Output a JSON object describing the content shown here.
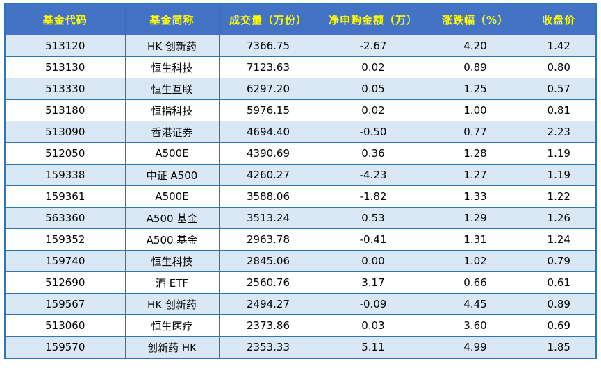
{
  "colors": {
    "header_bg": "#4472c4",
    "header_text": "#ffff00",
    "row_alt_bg": "#dae7f5",
    "row_bg": "#ffffff",
    "border": "#2e75b6"
  },
  "chart_data": {
    "type": "table",
    "title": "",
    "columns": [
      "基金代码",
      "基金简称",
      "成交量（万份）",
      "净申购金额（万）",
      "涨跌幅（%）",
      "收盘价"
    ],
    "column_keys": [
      "fund_code",
      "fund_name",
      "volume",
      "net_subscription",
      "change_pct",
      "close_price"
    ],
    "rows": [
      [
        "513120",
        "HK 创新药",
        "7366.75",
        "-2.67",
        "4.20",
        "1.42"
      ],
      [
        "513130",
        "恒生科技",
        "7123.63",
        "0.02",
        "0.89",
        "0.80"
      ],
      [
        "513330",
        "恒生互联",
        "6297.20",
        "0.05",
        "1.25",
        "0.57"
      ],
      [
        "513180",
        "恒指科技",
        "5976.15",
        "0.02",
        "1.00",
        "0.81"
      ],
      [
        "513090",
        "香港证券",
        "4694.40",
        "-0.50",
        "0.77",
        "2.23"
      ],
      [
        "512050",
        "A500E",
        "4390.69",
        "0.36",
        "1.28",
        "1.19"
      ],
      [
        "159338",
        "中证 A500",
        "4260.27",
        "-4.23",
        "1.27",
        "1.19"
      ],
      [
        "159361",
        "A500E",
        "3588.06",
        "-1.82",
        "1.33",
        "1.22"
      ],
      [
        "563360",
        "A500 基金",
        "3513.24",
        "0.53",
        "1.29",
        "1.26"
      ],
      [
        "159352",
        "A500 基金",
        "2963.78",
        "-0.41",
        "1.31",
        "1.24"
      ],
      [
        "159740",
        "恒生科技",
        "2845.06",
        "0.00",
        "1.02",
        "0.79"
      ],
      [
        "512690",
        "酒 ETF",
        "2560.76",
        "3.17",
        "0.66",
        "0.61"
      ],
      [
        "159567",
        "HK 创新药",
        "2494.27",
        "-0.09",
        "4.45",
        "0.89"
      ],
      [
        "513060",
        "恒生医疗",
        "2373.86",
        "0.03",
        "3.60",
        "0.69"
      ],
      [
        "159570",
        "创新药 HK",
        "2353.33",
        "5.11",
        "4.99",
        "1.85"
      ]
    ]
  }
}
